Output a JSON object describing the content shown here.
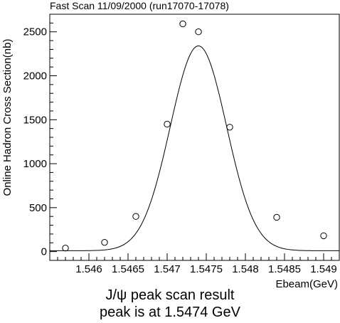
{
  "chart_data": {
    "type": "scatter",
    "title": "Fast Scan 11/09/2000 (run17070-17078)",
    "xlabel": "Ebeam(GeV)",
    "ylabel": "Online Hadron Cross Section(nb)",
    "xlim": [
      1.5455,
      1.5492
    ],
    "ylim": [
      -100,
      2700
    ],
    "x_ticks": [
      1.546,
      1.5465,
      1.547,
      1.5475,
      1.548,
      1.5485,
      1.549
    ],
    "x_tick_labels": [
      "1.546",
      "1.5465",
      "1.547",
      "1.5475",
      "1.548",
      "1.5485",
      "1.549"
    ],
    "y_ticks": [
      0,
      500,
      1000,
      1500,
      2000,
      2500
    ],
    "y_tick_labels": [
      "0",
      "500",
      "1000",
      "1500",
      "2000",
      "2500"
    ],
    "grid": false,
    "points": [
      {
        "x": 1.5457,
        "y": 40
      },
      {
        "x": 1.5462,
        "y": 105
      },
      {
        "x": 1.5466,
        "y": 400
      },
      {
        "x": 1.547,
        "y": 1450
      },
      {
        "x": 1.5472,
        "y": 2590
      },
      {
        "x": 1.5474,
        "y": 2500
      },
      {
        "x": 1.5478,
        "y": 1415
      },
      {
        "x": 1.5484,
        "y": 390
      },
      {
        "x": 1.549,
        "y": 180
      }
    ],
    "fit": {
      "type": "gaussian",
      "amplitude": 2330,
      "mean": 1.5474,
      "sigma": 0.00036,
      "baseline": 10
    },
    "annotations": [
      "J/ψ peak scan result",
      "peak is at 1.5474 GeV"
    ]
  }
}
